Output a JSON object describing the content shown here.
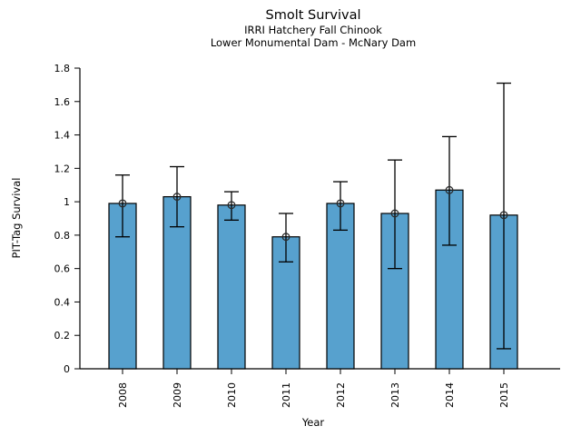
{
  "chart_data": {
    "type": "bar",
    "title": "Smolt Survival",
    "subtitle": [
      "IRRI Hatchery Fall Chinook",
      "Lower Monumental Dam - McNary Dam"
    ],
    "xlabel": "Year",
    "ylabel": "PIT-Tag Survival",
    "categories": [
      "2008",
      "2009",
      "2010",
      "2011",
      "2012",
      "2013",
      "2014",
      "2015"
    ],
    "series": [
      {
        "name": "PIT-Tag Survival",
        "values": [
          0.99,
          1.03,
          0.98,
          0.79,
          0.99,
          0.93,
          1.07,
          0.92
        ],
        "error_low": [
          0.79,
          0.85,
          0.89,
          0.64,
          0.83,
          0.6,
          0.74,
          0.12
        ],
        "error_high": [
          1.16,
          1.21,
          1.06,
          0.93,
          1.12,
          1.25,
          1.39,
          1.71
        ]
      }
    ],
    "ylim": [
      0,
      1.8
    ],
    "yticks": [
      0,
      0.2,
      0.4,
      0.6,
      0.8,
      1,
      1.2,
      1.4,
      1.6,
      1.8
    ],
    "ytick_labels": [
      "0",
      "0.2",
      "0.4",
      "0.6",
      "0.8",
      "1",
      "1.2",
      "1.4",
      "1.6",
      "1.8"
    ],
    "grid": false,
    "legend": null,
    "bar_color": "#57a1ce",
    "bar_edge_color": "#000000",
    "error_bar_color": "#000000",
    "marker": "open-circle"
  }
}
